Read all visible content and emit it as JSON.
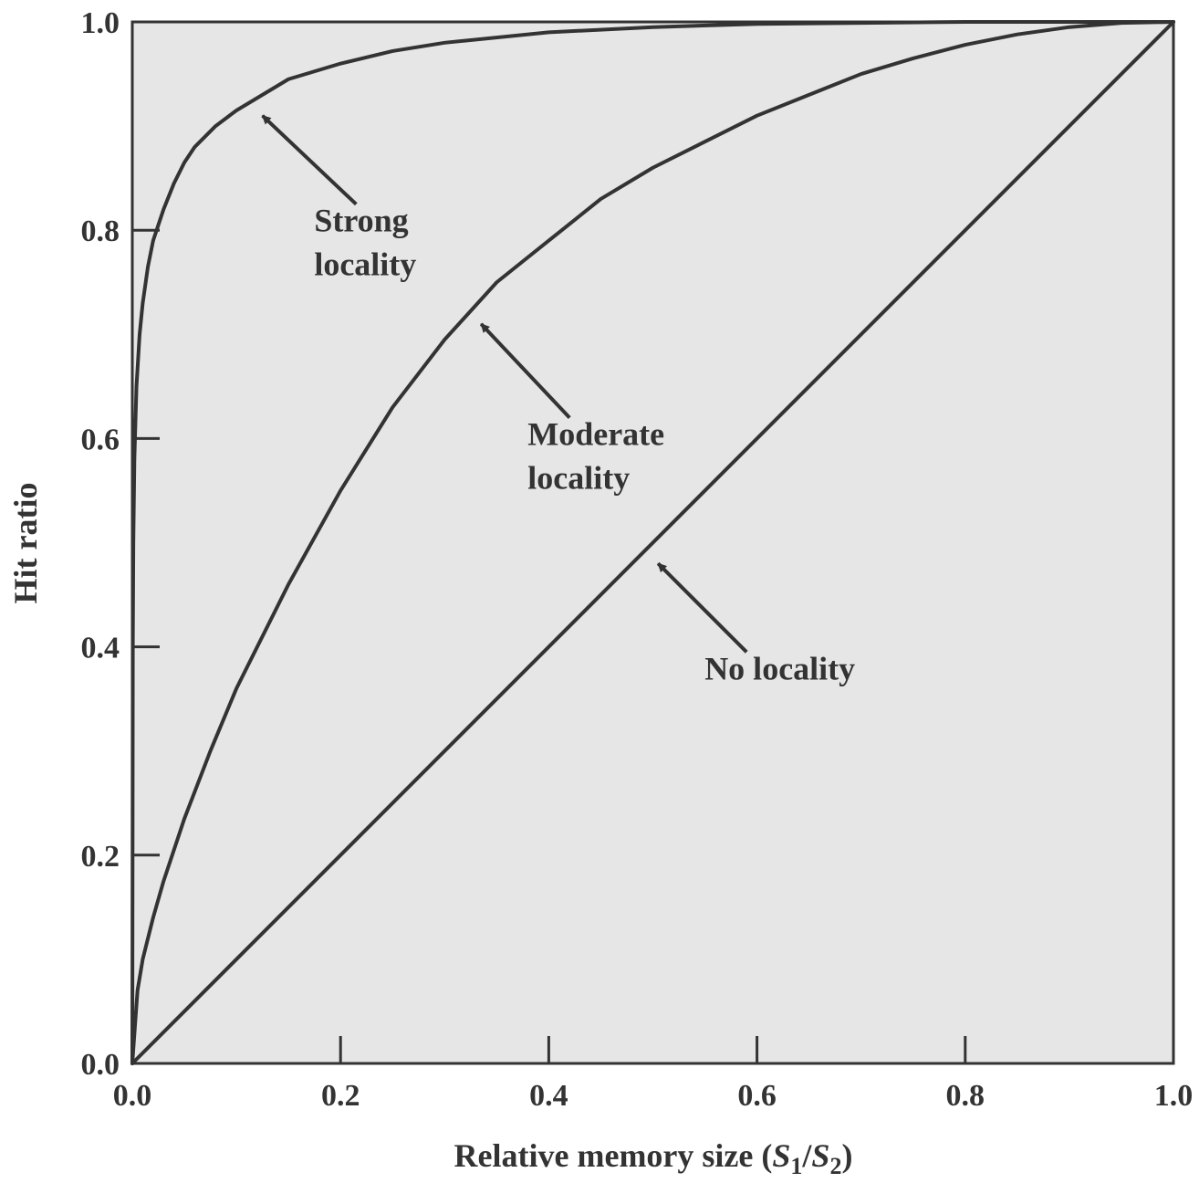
{
  "chart_data": {
    "type": "line",
    "title": "",
    "xlabel": {
      "prefix": "Relative memory size (",
      "s": "S",
      "sub1": "1",
      "slash": "/",
      "sub2": "2",
      "suffix": ")"
    },
    "ylabel": "Hit ratio",
    "xlim": [
      0,
      1
    ],
    "ylim": [
      0,
      1
    ],
    "x_ticks": [
      "0.0",
      "0.2",
      "0.4",
      "0.6",
      "0.8",
      "1.0"
    ],
    "y_ticks": [
      "0.0",
      "0.2",
      "0.4",
      "0.6",
      "0.8",
      "1.0"
    ],
    "grid": false,
    "background_color": "#e6e6e6",
    "line_color": "#333333",
    "series": [
      {
        "name": "Strong locality",
        "x": [
          0,
          0.0005,
          0.001,
          0.002,
          0.004,
          0.007,
          0.01,
          0.015,
          0.02,
          0.03,
          0.04,
          0.05,
          0.06,
          0.08,
          0.1,
          0.125,
          0.15,
          0.2,
          0.25,
          0.3,
          0.4,
          0.5,
          0.6,
          0.7,
          0.8,
          0.9,
          1.0
        ],
        "y": [
          0,
          0.4,
          0.5,
          0.58,
          0.65,
          0.7,
          0.73,
          0.765,
          0.79,
          0.82,
          0.845,
          0.865,
          0.88,
          0.9,
          0.915,
          0.93,
          0.945,
          0.96,
          0.972,
          0.98,
          0.99,
          0.995,
          0.998,
          0.999,
          1.0,
          1.0,
          1.0
        ]
      },
      {
        "name": "Moderate locality",
        "x": [
          0,
          0.005,
          0.01,
          0.02,
          0.03,
          0.05,
          0.075,
          0.1,
          0.15,
          0.2,
          0.25,
          0.3,
          0.35,
          0.4,
          0.45,
          0.5,
          0.55,
          0.6,
          0.65,
          0.7,
          0.75,
          0.8,
          0.85,
          0.9,
          0.95,
          1.0
        ],
        "y": [
          0,
          0.07,
          0.1,
          0.14,
          0.175,
          0.235,
          0.3,
          0.36,
          0.46,
          0.55,
          0.63,
          0.695,
          0.75,
          0.79,
          0.83,
          0.86,
          0.885,
          0.91,
          0.93,
          0.95,
          0.965,
          0.978,
          0.988,
          0.995,
          0.999,
          1.0
        ]
      },
      {
        "name": "No locality",
        "x": [
          0,
          1.0
        ],
        "y": [
          0,
          1.0
        ]
      }
    ],
    "annotations": [
      {
        "lines": [
          "Strong",
          "locality"
        ],
        "arrow_from": [
          0.215,
          0.825
        ],
        "arrow_to": [
          0.125,
          0.91
        ]
      },
      {
        "lines": [
          "Moderate",
          "locality"
        ],
        "arrow_from": [
          0.42,
          0.62
        ],
        "arrow_to": [
          0.335,
          0.71
        ]
      },
      {
        "lines": [
          "No locality"
        ],
        "arrow_from": [
          0.59,
          0.395
        ],
        "arrow_to": [
          0.505,
          0.48
        ]
      }
    ]
  }
}
